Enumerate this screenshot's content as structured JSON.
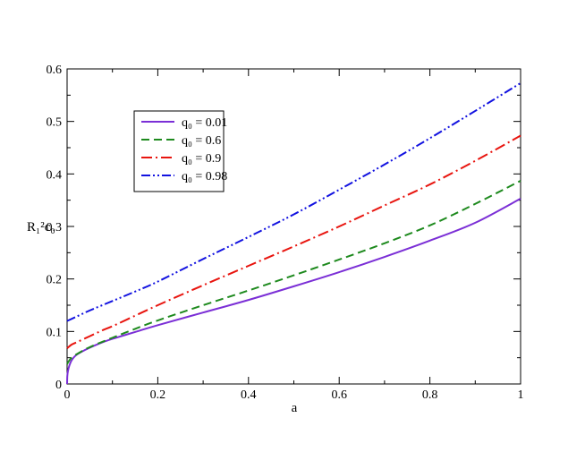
{
  "chart_data": {
    "type": "line",
    "xlabel": "a",
    "ylabel": "R₁²c₀",
    "xlim": [
      0,
      1
    ],
    "ylim": [
      0,
      0.6
    ],
    "xticks": [
      "0",
      "0.2",
      "0.4",
      "0.6",
      "0.8",
      "1"
    ],
    "yticks": [
      "0",
      "0.1",
      "0.2",
      "0.3",
      "0.4",
      "0.5",
      "0.6"
    ],
    "grid": false,
    "legend_position": "top-left",
    "series": [
      {
        "name": "q₀ = 0.01",
        "color": "#7b2fd6",
        "dash": "solid",
        "x": [
          0,
          0.0005,
          0.002,
          0.005,
          0.01,
          0.02,
          0.04,
          0.06,
          0.08,
          0.1,
          0.15,
          0.2,
          0.3,
          0.4,
          0.5,
          0.6,
          0.7,
          0.8,
          0.9,
          1.0
        ],
        "y": [
          0,
          0.015,
          0.025,
          0.035,
          0.045,
          0.055,
          0.065,
          0.073,
          0.08,
          0.086,
          0.099,
          0.112,
          0.136,
          0.16,
          0.186,
          0.213,
          0.242,
          0.273,
          0.307,
          0.353
        ]
      },
      {
        "name": "q₀ = 0.6",
        "color": "#1e8a1e",
        "dash": "dashed",
        "x": [
          0,
          0.005,
          0.01,
          0.02,
          0.04,
          0.06,
          0.08,
          0.1,
          0.15,
          0.2,
          0.3,
          0.4,
          0.5,
          0.6,
          0.7,
          0.8,
          0.9,
          1.0
        ],
        "y": [
          0.038,
          0.045,
          0.05,
          0.056,
          0.066,
          0.074,
          0.081,
          0.088,
          0.105,
          0.121,
          0.15,
          0.178,
          0.207,
          0.237,
          0.268,
          0.302,
          0.343,
          0.387
        ]
      },
      {
        "name": "q₀ = 0.9",
        "color": "#e8150f",
        "dash": "dashdot",
        "x": [
          0,
          0.01,
          0.02,
          0.04,
          0.06,
          0.08,
          0.1,
          0.15,
          0.2,
          0.3,
          0.4,
          0.5,
          0.6,
          0.7,
          0.8,
          0.9,
          1.0
        ],
        "y": [
          0.068,
          0.075,
          0.079,
          0.087,
          0.095,
          0.103,
          0.11,
          0.13,
          0.15,
          0.188,
          0.225,
          0.262,
          0.3,
          0.34,
          0.38,
          0.425,
          0.473
        ]
      },
      {
        "name": "q₀ = 0.98",
        "color": "#1212e0",
        "dash": "dashdotdot",
        "x": [
          0,
          0.02,
          0.05,
          0.1,
          0.15,
          0.2,
          0.3,
          0.4,
          0.5,
          0.6,
          0.7,
          0.8,
          0.9,
          1.0
        ],
        "y": [
          0.12,
          0.128,
          0.14,
          0.158,
          0.176,
          0.195,
          0.238,
          0.28,
          0.323,
          0.37,
          0.418,
          0.468,
          0.52,
          0.573
        ]
      }
    ]
  }
}
